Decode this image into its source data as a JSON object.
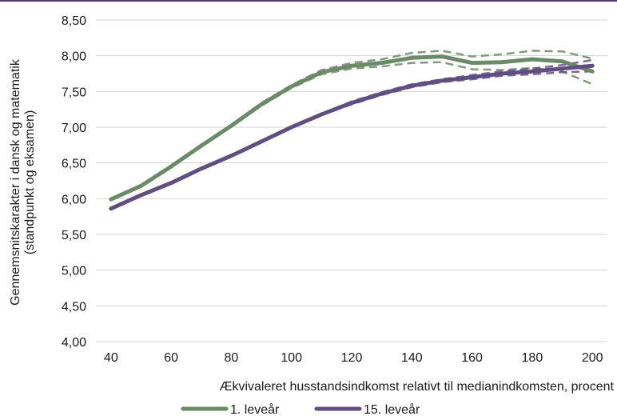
{
  "chart_data": {
    "type": "line",
    "xlabel": "Ækvivaleret husstandsindkomst relativt til medianindkomsten, procent",
    "ylabel_lines": [
      "Gennemsnitskarakter i dansk og matematik",
      "(standpunkt og eksamen)"
    ],
    "xlim": [
      35,
      205
    ],
    "ylim": [
      4.0,
      8.5
    ],
    "x_ticks": [
      40,
      60,
      80,
      100,
      120,
      140,
      160,
      180,
      200
    ],
    "y_ticks": [
      "4,00",
      "4,50",
      "5,00",
      "5,50",
      "6,00",
      "6,50",
      "7,00",
      "7,50",
      "8,00",
      "8,50"
    ],
    "y_tick_values": [
      4.0,
      4.5,
      5.0,
      5.5,
      6.0,
      6.5,
      7.0,
      7.5,
      8.0,
      8.5
    ],
    "grid": "horizontal",
    "legend_position": "bottom",
    "x": [
      40,
      50,
      60,
      70,
      80,
      90,
      100,
      110,
      120,
      130,
      140,
      150,
      160,
      170,
      180,
      190,
      200
    ],
    "series": [
      {
        "name": "1. leveår",
        "color": "#6b8a68",
        "values": [
          5.99,
          6.18,
          6.45,
          6.74,
          7.02,
          7.32,
          7.57,
          7.77,
          7.86,
          7.9,
          7.97,
          7.99,
          7.9,
          7.91,
          7.95,
          7.92,
          7.78
        ],
        "ci_upper": [
          6.0,
          6.19,
          6.46,
          6.75,
          7.03,
          7.34,
          7.59,
          7.8,
          7.9,
          7.95,
          8.04,
          8.07,
          7.99,
          8.02,
          8.07,
          8.06,
          7.96
        ],
        "ci_lower": [
          5.98,
          6.17,
          6.44,
          6.73,
          7.01,
          7.3,
          7.55,
          7.74,
          7.82,
          7.85,
          7.9,
          7.91,
          7.81,
          7.8,
          7.83,
          7.78,
          7.6
        ]
      },
      {
        "name": "15. leveår",
        "color": "#5e4f80",
        "values": [
          5.86,
          6.05,
          6.22,
          6.42,
          6.6,
          6.8,
          7.0,
          7.18,
          7.34,
          7.47,
          7.58,
          7.65,
          7.7,
          7.75,
          7.78,
          7.82,
          7.86
        ],
        "ci_upper": [
          5.87,
          6.06,
          6.23,
          6.43,
          6.61,
          6.81,
          7.01,
          7.19,
          7.36,
          7.49,
          7.6,
          7.67,
          7.73,
          7.78,
          7.82,
          7.87,
          7.94
        ],
        "ci_lower": [
          5.85,
          6.04,
          6.21,
          6.41,
          6.59,
          6.79,
          6.99,
          7.17,
          7.32,
          7.45,
          7.56,
          7.63,
          7.67,
          7.72,
          7.74,
          7.77,
          7.78
        ]
      }
    ]
  }
}
